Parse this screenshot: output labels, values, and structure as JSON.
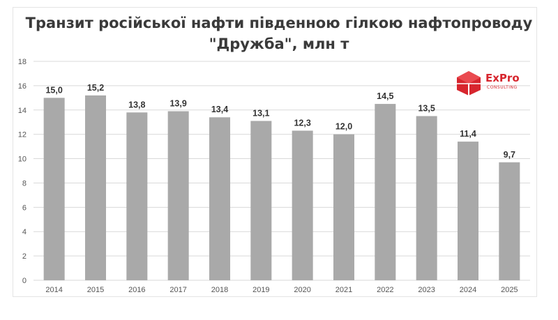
{
  "title_line1": "Транзит російської нафти південною гілкою нафтопроводу",
  "title_line2": "\"Дружба\", млн т",
  "logo": {
    "name": "ExPro",
    "sub": "CONSULTING",
    "color": "#d7262e"
  },
  "colors": {
    "bar": "#a9a9a9",
    "grid": "#d9d9d9"
  },
  "chart_data": {
    "type": "bar",
    "title": "Транзит російської нафти південною гілкою нафтопроводу \"Дружба\", млн т",
    "categories": [
      "2014",
      "2015",
      "2016",
      "2017",
      "2018",
      "2019",
      "2020",
      "2021",
      "2022",
      "2023",
      "2024",
      "2025"
    ],
    "values": [
      15.0,
      15.2,
      13.8,
      13.9,
      13.4,
      13.1,
      12.3,
      12.0,
      14.5,
      13.5,
      11.4,
      9.7
    ],
    "value_labels": [
      "15,0",
      "15,2",
      "13,8",
      "13,9",
      "13,4",
      "13,1",
      "12,3",
      "12,0",
      "14,5",
      "13,5",
      "11,4",
      "9,7"
    ],
    "yticks": [
      "0",
      "2",
      "4",
      "6",
      "8",
      "10",
      "12",
      "14",
      "16",
      "18"
    ],
    "ylim": [
      0,
      18
    ],
    "grid": true,
    "legend": "none"
  }
}
